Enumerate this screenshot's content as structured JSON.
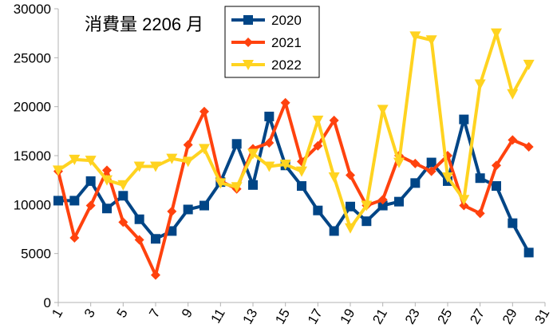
{
  "chart_data": {
    "type": "line",
    "title": "消費量 2206 月",
    "x": [
      1,
      2,
      3,
      4,
      5,
      6,
      7,
      8,
      9,
      10,
      11,
      12,
      13,
      14,
      15,
      16,
      17,
      18,
      19,
      20,
      21,
      22,
      23,
      24,
      25,
      26,
      27,
      28,
      29,
      30
    ],
    "series": [
      {
        "name": "2020",
        "color": "#004586",
        "marker": "square",
        "values": [
          10400,
          10400,
          12400,
          9600,
          10900,
          8500,
          6500,
          7300,
          9500,
          9900,
          12300,
          16200,
          12000,
          19000,
          14000,
          11900,
          9400,
          7300,
          9800,
          8300,
          9900,
          10300,
          12200,
          14300,
          12400,
          18700,
          12700,
          11900,
          8100,
          5100
        ]
      },
      {
        "name": "2021",
        "color": "#ff420e",
        "marker": "diamond",
        "values": [
          13400,
          6600,
          9900,
          13500,
          8200,
          6400,
          2800,
          9300,
          16100,
          19500,
          12400,
          11600,
          15700,
          16300,
          20400,
          14400,
          16000,
          18600,
          13000,
          9900,
          10500,
          15000,
          14200,
          13400,
          15000,
          9900,
          9100,
          14000,
          16600,
          15900
        ]
      },
      {
        "name": "2022",
        "color": "#ffd320",
        "marker": "triangle",
        "values": [
          13500,
          14600,
          14500,
          12500,
          12000,
          13900,
          13900,
          14700,
          14400,
          15700,
          12200,
          11800,
          15200,
          13900,
          14100,
          13400,
          18600,
          12800,
          7600,
          9900,
          19700,
          14300,
          27200,
          26800,
          12800,
          10500,
          22300,
          27500,
          21300,
          24300
        ]
      }
    ],
    "xlim": [
      1,
      31
    ],
    "xticks": [
      1,
      3,
      5,
      7,
      9,
      11,
      13,
      15,
      17,
      19,
      21,
      23,
      25,
      27,
      29,
      31
    ],
    "ylim": [
      0,
      30000
    ],
    "yticks": [
      0,
      5000,
      10000,
      15000,
      20000,
      25000,
      30000
    ],
    "grid": false
  }
}
